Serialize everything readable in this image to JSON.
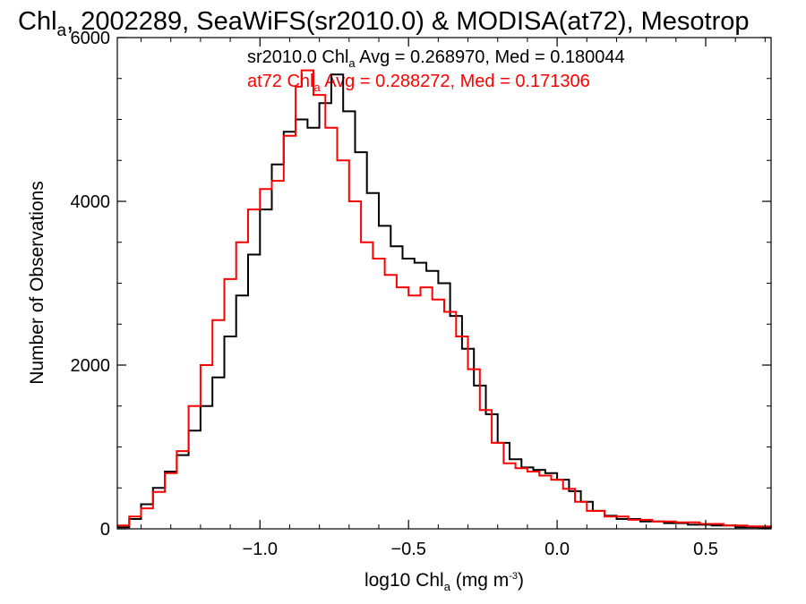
{
  "chart_data": {
    "type": "line",
    "title": {
      "main": "Chl",
      "sub": "a",
      "rest": ", 2002289, SeaWiFS(sr2010.0) & MODISA(at72), Mesotrop"
    },
    "xlabel": {
      "main": "log10 Chl",
      "sub": "a",
      "rest": " (mg m",
      "sup": "-3",
      "end": ")"
    },
    "ylabel": "Number of Observations",
    "xlim": [
      -1.48,
      0.72
    ],
    "ylim": [
      0,
      6000
    ],
    "x_ticks": [
      {
        "value": -1.0,
        "label": "−1.0"
      },
      {
        "value": -0.5,
        "label": "−0.5"
      },
      {
        "value": 0.0,
        "label": "0.0"
      },
      {
        "value": 0.5,
        "label": "0.5"
      }
    ],
    "y_ticks": [
      {
        "value": 0,
        "label": "0"
      },
      {
        "value": 2000,
        "label": "2000"
      },
      {
        "value": 4000,
        "label": "4000"
      },
      {
        "value": 6000,
        "label": "6000"
      }
    ],
    "grid": false,
    "legend_placement": "top-center",
    "series": [
      {
        "name": "sr2010.0",
        "legend": {
          "main": "sr2010.0 Chl",
          "sub": "a",
          "rest": " Avg = 0.268970, Med = 0.180044"
        },
        "color": "#000000",
        "points": [
          [
            -1.48,
            20
          ],
          [
            -1.44,
            120
          ],
          [
            -1.4,
            300
          ],
          [
            -1.36,
            500
          ],
          [
            -1.32,
            700
          ],
          [
            -1.28,
            900
          ],
          [
            -1.24,
            1200
          ],
          [
            -1.2,
            1500
          ],
          [
            -1.16,
            1850
          ],
          [
            -1.12,
            2350
          ],
          [
            -1.08,
            2850
          ],
          [
            -1.04,
            3350
          ],
          [
            -1.0,
            3900
          ],
          [
            -0.96,
            4450
          ],
          [
            -0.92,
            4850
          ],
          [
            -0.88,
            5000
          ],
          [
            -0.84,
            4900
          ],
          [
            -0.8,
            5200
          ],
          [
            -0.76,
            5550
          ],
          [
            -0.72,
            5100
          ],
          [
            -0.68,
            4600
          ],
          [
            -0.64,
            4100
          ],
          [
            -0.6,
            3700
          ],
          [
            -0.56,
            3450
          ],
          [
            -0.52,
            3300
          ],
          [
            -0.48,
            3250
          ],
          [
            -0.44,
            3150
          ],
          [
            -0.4,
            3000
          ],
          [
            -0.36,
            2600
          ],
          [
            -0.32,
            2200
          ],
          [
            -0.28,
            1750
          ],
          [
            -0.24,
            1400
          ],
          [
            -0.2,
            1050
          ],
          [
            -0.16,
            850
          ],
          [
            -0.12,
            750
          ],
          [
            -0.08,
            720
          ],
          [
            -0.04,
            680
          ],
          [
            0.0,
            600
          ],
          [
            0.04,
            460
          ],
          [
            0.08,
            330
          ],
          [
            0.12,
            220
          ],
          [
            0.16,
            160
          ],
          [
            0.2,
            120
          ],
          [
            0.28,
            90
          ],
          [
            0.36,
            70
          ],
          [
            0.44,
            50
          ],
          [
            0.52,
            40
          ],
          [
            0.6,
            20
          ],
          [
            0.68,
            15
          ],
          [
            0.72,
            10
          ]
        ]
      },
      {
        "name": "at72",
        "legend": {
          "main": "at72 Chl",
          "sub": "a",
          "rest": " Avg = 0.288272, Med = 0.171306"
        },
        "color": "#ff0000",
        "points": [
          [
            -1.48,
            40
          ],
          [
            -1.44,
            150
          ],
          [
            -1.4,
            250
          ],
          [
            -1.36,
            450
          ],
          [
            -1.32,
            680
          ],
          [
            -1.28,
            950
          ],
          [
            -1.24,
            1500
          ],
          [
            -1.2,
            2000
          ],
          [
            -1.16,
            2550
          ],
          [
            -1.12,
            3050
          ],
          [
            -1.08,
            3500
          ],
          [
            -1.04,
            3900
          ],
          [
            -1.0,
            4150
          ],
          [
            -0.96,
            4250
          ],
          [
            -0.92,
            4800
          ],
          [
            -0.88,
            5400
          ],
          [
            -0.86,
            5600
          ],
          [
            -0.82,
            5300
          ],
          [
            -0.78,
            4900
          ],
          [
            -0.74,
            4500
          ],
          [
            -0.7,
            4000
          ],
          [
            -0.66,
            3500
          ],
          [
            -0.62,
            3300
          ],
          [
            -0.58,
            3100
          ],
          [
            -0.54,
            2950
          ],
          [
            -0.5,
            2850
          ],
          [
            -0.46,
            2950
          ],
          [
            -0.42,
            2800
          ],
          [
            -0.38,
            2650
          ],
          [
            -0.34,
            2350
          ],
          [
            -0.3,
            1950
          ],
          [
            -0.26,
            1450
          ],
          [
            -0.22,
            1050
          ],
          [
            -0.18,
            800
          ],
          [
            -0.14,
            740
          ],
          [
            -0.1,
            700
          ],
          [
            -0.06,
            650
          ],
          [
            -0.02,
            600
          ],
          [
            0.02,
            490
          ],
          [
            0.06,
            330
          ],
          [
            0.1,
            220
          ],
          [
            0.16,
            150
          ],
          [
            0.24,
            110
          ],
          [
            0.32,
            90
          ],
          [
            0.4,
            80
          ],
          [
            0.48,
            60
          ],
          [
            0.56,
            40
          ],
          [
            0.64,
            30
          ],
          [
            0.72,
            20
          ]
        ]
      }
    ]
  }
}
